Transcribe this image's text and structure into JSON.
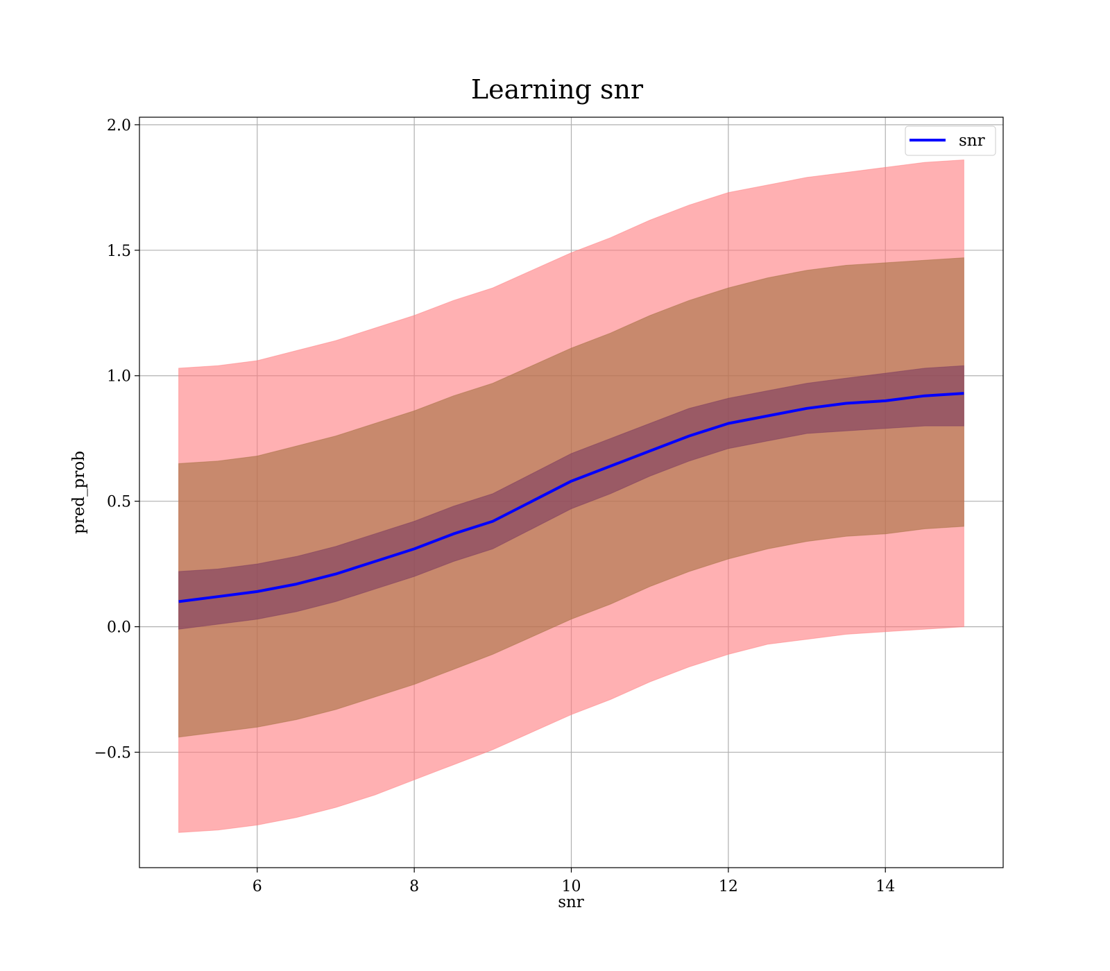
{
  "chart_data": {
    "type": "line",
    "title": "Learning snr",
    "xlabel": "snr",
    "ylabel": "pred_prob",
    "xlim": [
      4.5,
      15.5
    ],
    "ylim": [
      -0.96,
      2.03
    ],
    "xticks": [
      6,
      8,
      10,
      12,
      14
    ],
    "xtick_labels": [
      "6",
      "8",
      "10",
      "12",
      "14"
    ],
    "yticks": [
      -0.5,
      0.0,
      0.5,
      1.0,
      1.5,
      2.0
    ],
    "ytick_labels": [
      "−0.5",
      "0.0",
      "0.5",
      "1.0",
      "1.5",
      "2.0"
    ],
    "grid": true,
    "legend": {
      "position": "top-right",
      "entries": [
        "snr"
      ]
    },
    "colors": {
      "line": "#0000ff",
      "band_outer": "#ff7b7e",
      "band_middle": "#a4703f",
      "band_inner": "#7b3a60"
    },
    "series": [
      {
        "name": "snr",
        "x": [
          5.0,
          5.5,
          6.0,
          6.5,
          7.0,
          7.5,
          8.0,
          8.5,
          9.0,
          9.5,
          10.0,
          10.5,
          11.0,
          11.5,
          12.0,
          12.5,
          13.0,
          13.5,
          14.0,
          14.5,
          15.0
        ],
        "y": [
          0.1,
          0.12,
          0.14,
          0.17,
          0.21,
          0.26,
          0.31,
          0.37,
          0.42,
          0.5,
          0.58,
          0.64,
          0.7,
          0.76,
          0.81,
          0.84,
          0.87,
          0.89,
          0.9,
          0.92,
          0.93
        ],
        "bands": [
          {
            "lower": [
              -0.82,
              -0.81,
              -0.79,
              -0.76,
              -0.72,
              -0.67,
              -0.61,
              -0.55,
              -0.49,
              -0.42,
              -0.35,
              -0.29,
              -0.22,
              -0.16,
              -0.11,
              -0.07,
              -0.05,
              -0.03,
              -0.02,
              -0.01,
              0.0
            ],
            "upper": [
              1.03,
              1.04,
              1.06,
              1.1,
              1.14,
              1.19,
              1.24,
              1.3,
              1.35,
              1.42,
              1.49,
              1.55,
              1.62,
              1.68,
              1.73,
              1.76,
              1.79,
              1.81,
              1.83,
              1.85,
              1.86
            ]
          },
          {
            "lower": [
              -0.44,
              -0.42,
              -0.4,
              -0.37,
              -0.33,
              -0.28,
              -0.23,
              -0.17,
              -0.11,
              -0.04,
              0.03,
              0.09,
              0.16,
              0.22,
              0.27,
              0.31,
              0.34,
              0.36,
              0.37,
              0.39,
              0.4
            ],
            "upper": [
              0.65,
              0.66,
              0.68,
              0.72,
              0.76,
              0.81,
              0.86,
              0.92,
              0.97,
              1.04,
              1.11,
              1.17,
              1.24,
              1.3,
              1.35,
              1.39,
              1.42,
              1.44,
              1.45,
              1.46,
              1.47
            ]
          },
          {
            "lower": [
              -0.01,
              0.01,
              0.03,
              0.06,
              0.1,
              0.15,
              0.2,
              0.26,
              0.31,
              0.39,
              0.47,
              0.53,
              0.6,
              0.66,
              0.71,
              0.74,
              0.77,
              0.78,
              0.79,
              0.8,
              0.8
            ],
            "upper": [
              0.22,
              0.23,
              0.25,
              0.28,
              0.32,
              0.37,
              0.42,
              0.48,
              0.53,
              0.61,
              0.69,
              0.75,
              0.81,
              0.87,
              0.91,
              0.94,
              0.97,
              0.99,
              1.01,
              1.03,
              1.04
            ]
          }
        ]
      }
    ]
  }
}
